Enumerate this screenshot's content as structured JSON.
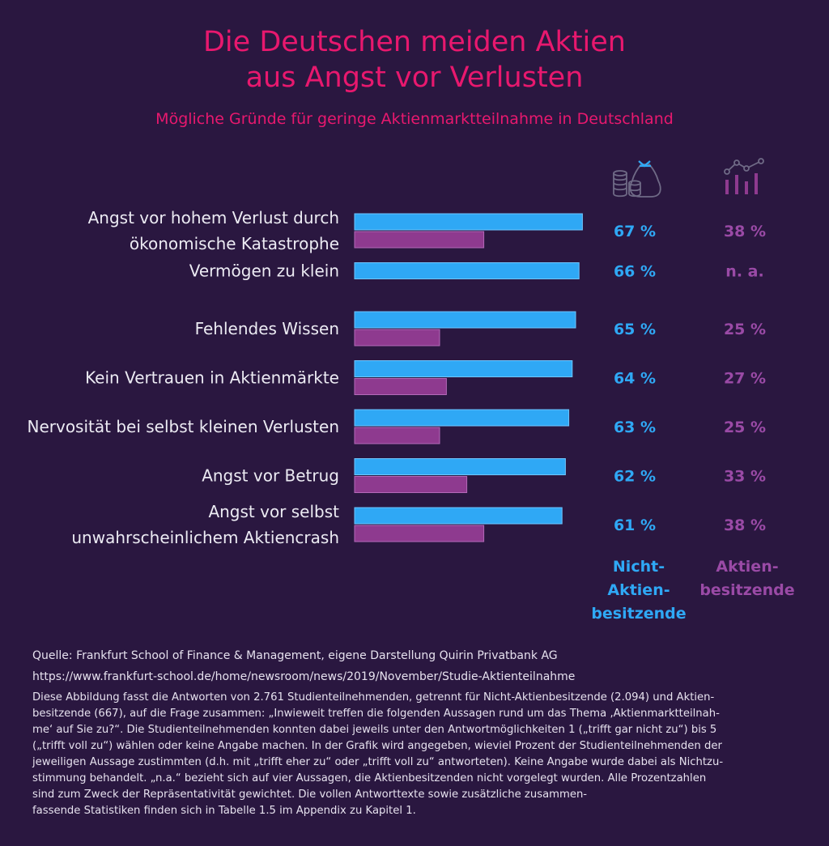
{
  "title_line1": "Die Deutschen meiden Aktien",
  "title_line2": "aus Angst vor Verlusten",
  "subtitle": "Mögliche Gründe für geringe Aktienmarktteilnahme in Deutschland",
  "colors": {
    "background": "#2a1740",
    "title": "#e8186e",
    "non_holders": "#2fa8f5",
    "holders": "#8e3a8f"
  },
  "icons": [
    "money-bag-coins-icon",
    "bar-chart-line-icon"
  ],
  "chart_data": {
    "type": "bar",
    "orientation": "horizontal",
    "categories": [
      [
        "Angst vor hohem Verlust durch",
        "ökonomische Katastrophe"
      ],
      [
        "Vermögen zu klein"
      ],
      [
        "Fehlendes Wissen"
      ],
      [
        "Kein Vertrauen in Aktienmärkte"
      ],
      [
        "Nervosität bei selbst kleinen Verlusten"
      ],
      [
        "Angst vor Betrug"
      ],
      [
        "Angst vor selbst",
        "unwahrscheinlichem Aktiencrash"
      ]
    ],
    "series": [
      {
        "name": "Nicht-Aktien-besitzende",
        "legend_lines": [
          "Nicht-",
          "Aktien-",
          "besitzende"
        ],
        "values": [
          67,
          66,
          65,
          64,
          63,
          62,
          61
        ],
        "labels": [
          "67 %",
          "66 %",
          "65 %",
          "64 %",
          "63 %",
          "62 %",
          "61 %"
        ]
      },
      {
        "name": "Aktien-besitzende",
        "legend_lines": [
          "Aktien-",
          "besitzende"
        ],
        "values": [
          38,
          null,
          25,
          27,
          25,
          33,
          38
        ],
        "labels": [
          "38 %",
          "n. a.",
          "25 %",
          "27 %",
          "25 %",
          "33 %",
          "38 %"
        ]
      }
    ],
    "xlim": [
      0,
      100
    ]
  },
  "footer": {
    "source": "Quelle: Frankfurt School of Finance & Management, eigene Darstellung Quirin Privatbank AG",
    "url": "https://www.frankfurt-school.de/home/newsroom/news/2019/November/Studie-Aktienteilnahme",
    "note_lines": [
      "Diese Abbildung fasst die Antworten von 2.761 Studienteilnehmenden, getrennt für Nicht-Aktienbesitzende (2.094) und Aktien-",
      "besitzende (667), auf die Frage zusammen: „Inwieweit treffen die folgenden Aussagen rund um das Thema ‚Aktienmarktteilnah-",
      "me‘ auf Sie zu?“. Die Studienteilnehmenden konnten dabei jeweils unter den Antwortmöglichkeiten 1 („trifft gar nicht zu“) bis 5",
      "(„trifft voll zu“) wählen oder keine Angabe machen. In der Grafik wird angegeben, wieviel Prozent der Studienteilnehmenden der",
      "jeweiligen Aussage zustimmten (d.h. mit „trifft eher zu“ oder „trifft voll zu“ antworteten). Keine Angabe wurde dabei als Nichtzu-",
      "stimmung behandelt. „n.a.“ bezieht sich auf vier Aussagen, die Aktienbesitzenden nicht vorgelegt wurden. Alle Prozentzahlen",
      "sind zum Zweck der Repräsentativität gewichtet. Die vollen Antworttexte sowie zusätzliche zusammen-",
      "fassende Statistiken finden sich in Tabelle 1.5 im Appendix zu Kapitel 1."
    ]
  }
}
